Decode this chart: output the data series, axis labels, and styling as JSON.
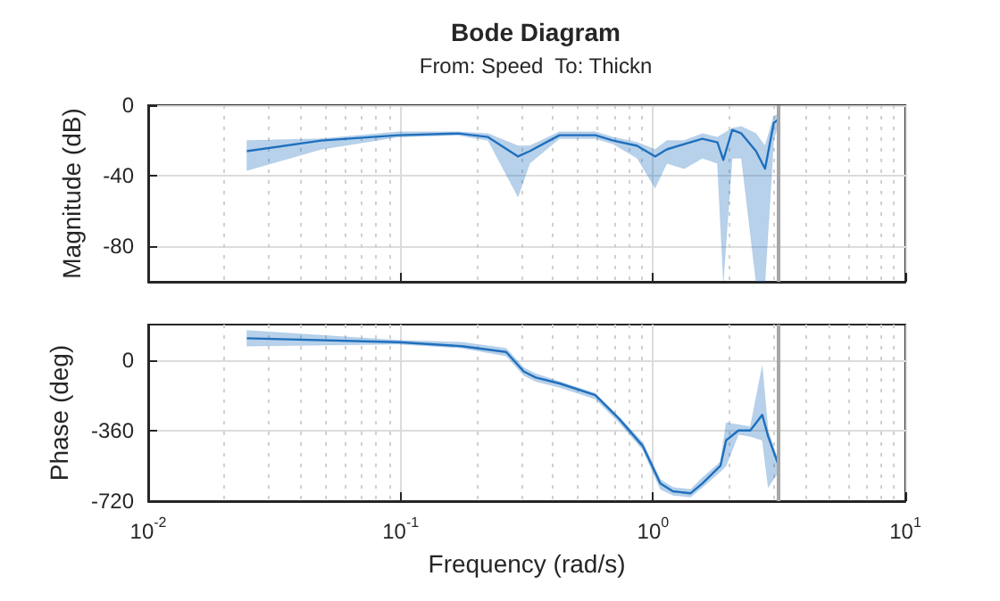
{
  "chart_data": [
    {
      "type": "line",
      "title": "Bode Diagram",
      "subtitle": "From: Speed  To: Thickn",
      "ylabel": "Magnitude (dB)",
      "x": [
        0.0246,
        0.0485,
        0.098,
        0.169,
        0.222,
        0.292,
        0.325,
        0.426,
        0.591,
        0.695,
        0.865,
        1.02,
        1.135,
        1.33,
        1.57,
        1.8,
        1.9,
        2.06,
        2.24,
        2.56,
        2.78,
        3.01,
        3.15
      ],
      "series": [
        {
          "color": "#1f6fbd",
          "values": [
            -26,
            -20,
            -17,
            -16,
            -18,
            -29,
            -26,
            -17,
            -17,
            -20,
            -23,
            -29,
            -25,
            -22,
            -19,
            -21,
            -31,
            -14,
            -16,
            -26,
            -36,
            -10,
            -8
          ],
          "upper": [
            -20,
            -19,
            -15,
            -15,
            -16,
            -23,
            -23,
            -15,
            -15,
            -18,
            -21,
            -25,
            -20,
            -20,
            -16,
            -18,
            -16,
            -13,
            -12,
            -16,
            -23,
            -6,
            -5
          ],
          "lower": [
            -37,
            -25,
            -18,
            -17,
            -20,
            -52,
            -33,
            -19,
            -19,
            -22,
            -30,
            -47,
            -33,
            -36,
            -30,
            -33,
            -100,
            -30,
            -30,
            -100,
            -100,
            -20,
            -10
          ]
        }
      ],
      "xlim": [
        0.01,
        10
      ],
      "xticks": [
        {
          "value": 0.01,
          "label": null
        },
        {
          "value": 0.1,
          "label": null
        },
        {
          "value": 1,
          "label": null
        },
        {
          "value": 10,
          "label": null
        }
      ],
      "ylim": [
        -100,
        0
      ],
      "yticks": [
        0,
        -40,
        -80
      ],
      "log": "x",
      "grid": true,
      "tick_labels": "y",
      "ref_lines": [
        {
          "axis": "x",
          "value": 3.14,
          "color": "#a6a6a6"
        }
      ]
    },
    {
      "type": "line",
      "xlabel": "Frequency (rad/s)",
      "ylabel": "Phase (deg)",
      "x": [
        0.0246,
        0.098,
        0.175,
        0.262,
        0.308,
        0.343,
        0.426,
        0.591,
        0.734,
        0.912,
        1.07,
        1.2,
        1.41,
        1.57,
        1.85,
        1.95,
        2.18,
        2.43,
        2.71,
        2.86,
        3.15
      ],
      "series": [
        {
          "color": "#1f6fbd",
          "values": [
            110,
            90,
            70,
            40,
            -60,
            -90,
            -120,
            -180,
            -300,
            -440,
            -630,
            -670,
            -680,
            -630,
            -540,
            -410,
            -360,
            -360,
            -280,
            -390,
            -540
          ],
          "upper": [
            150,
            100,
            90,
            60,
            -40,
            -70,
            -110,
            -170,
            -290,
            -420,
            -610,
            -650,
            -660,
            -600,
            -520,
            -320,
            -330,
            -340,
            -30,
            -360,
            -520
          ],
          "lower": [
            70,
            80,
            60,
            20,
            -80,
            -110,
            -140,
            -200,
            -320,
            -460,
            -660,
            -690,
            -700,
            -650,
            -570,
            -540,
            -380,
            -390,
            -410,
            -650,
            -570
          ]
        }
      ],
      "xlim": [
        0.01,
        10
      ],
      "xticks": [
        {
          "value": 0.01,
          "label": "10$^{-2}$"
        },
        {
          "value": 0.1,
          "label": "10$^{-1}$"
        },
        {
          "value": 1,
          "label": "10$^{0}$"
        },
        {
          "value": 10,
          "label": "10$^{1}$"
        }
      ],
      "ylim": [
        -720,
        180
      ],
      "yticks": [
        0,
        -360,
        -720
      ],
      "log": "x",
      "grid": true,
      "ref_lines": [
        {
          "axis": "x",
          "value": 3.14,
          "color": "#a6a6a6"
        }
      ]
    }
  ]
}
